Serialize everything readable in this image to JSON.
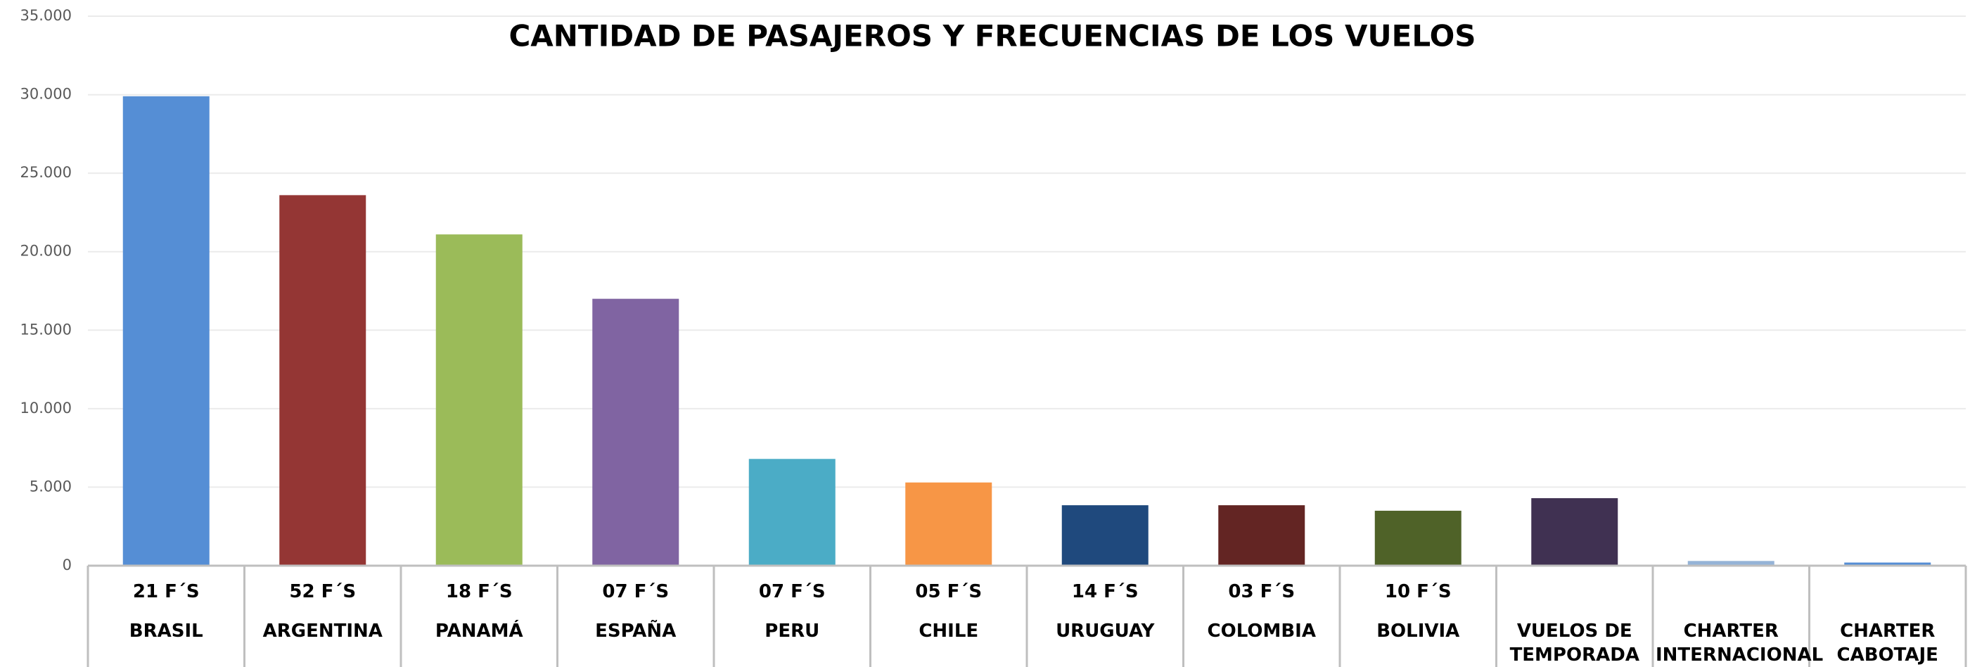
{
  "chart_data": {
    "type": "bar",
    "title": "CANTIDAD DE PASAJEROS Y FRECUENCIAS DE LOS VUELOS",
    "categories": [
      "BRASIL",
      "ARGENTINA",
      "PANAMÁ",
      "ESPAÑA",
      "PERU",
      "CHILE",
      "URUGUAY",
      "COLOMBIA",
      "BOLIVIA",
      "VUELOS DE TEMPORADA",
      "CHARTER INTERNACIONAL",
      "CHARTER CABOTAJE"
    ],
    "frequencies": [
      "21 F´S",
      "52 F´S",
      "18 F´S",
      "07 F´S",
      "07 F´S",
      "05 F´S",
      "14 F´S",
      "03 F´S",
      "10 F´S",
      null,
      null,
      null
    ],
    "values": [
      29900,
      23600,
      21100,
      17000,
      6800,
      5300,
      3850,
      3850,
      3500,
      4300,
      300,
      200
    ],
    "colors": [
      "#558ed5",
      "#943634",
      "#9bbb59",
      "#8064a2",
      "#4bacc6",
      "#f79646",
      "#1f497d",
      "#632523",
      "#4f6228",
      "#403152",
      "#95b3d7",
      "#558ed5"
    ],
    "ylim": [
      0,
      35000
    ],
    "yticks": [
      0,
      {
        "value": 5000,
        "label": "5.000"
      },
      {
        "value": 10000,
        "label": "10.000"
      },
      {
        "value": 15000,
        "label": "15.000"
      },
      {
        "value": 20000,
        "label": "20.000"
      },
      {
        "value": 25000,
        "label": "25.000"
      },
      {
        "value": 30000,
        "label": "30.000"
      },
      {
        "value": 35000,
        "label": "35.000"
      }
    ],
    "grid": true
  }
}
